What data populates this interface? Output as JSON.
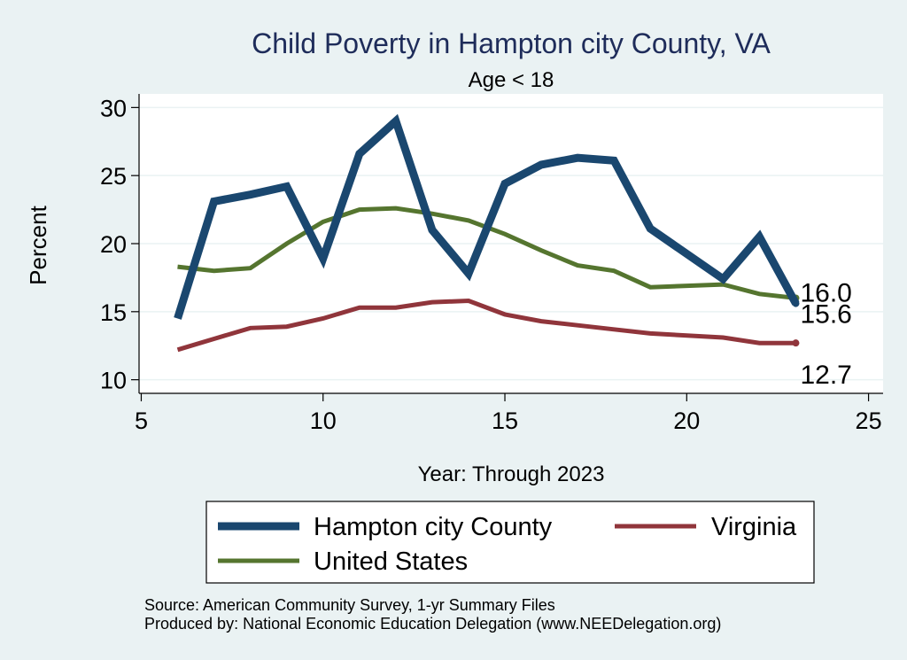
{
  "chart_data": {
    "type": "line",
    "title": "Child Poverty in Hampton city County, VA",
    "subtitle": "Age < 18",
    "xlabel": "Year: Through 2023",
    "ylabel": "Percent",
    "xlim": [
      5,
      25
    ],
    "ylim": [
      10,
      30
    ],
    "xticks": [
      5,
      10,
      15,
      20,
      25
    ],
    "yticks": [
      10,
      15,
      20,
      25,
      30
    ],
    "grid": true,
    "legend_position": "bottom",
    "series": [
      {
        "name": "Hampton city County",
        "color": "#1a476f",
        "x": [
          6,
          7,
          8,
          9,
          10,
          11,
          12,
          13,
          14,
          15,
          16,
          17,
          18,
          19,
          21,
          22,
          23
        ],
        "values": [
          14.5,
          23.1,
          23.6,
          24.2,
          18.9,
          26.6,
          29.0,
          21.0,
          17.8,
          24.4,
          25.8,
          26.3,
          26.1,
          21.1,
          17.4,
          20.5,
          15.6
        ],
        "end_label": "15.6"
      },
      {
        "name": "Virginia",
        "color": "#90353b",
        "x": [
          6,
          7,
          8,
          9,
          10,
          11,
          12,
          13,
          14,
          15,
          16,
          17,
          18,
          19,
          21,
          22,
          23
        ],
        "values": [
          12.2,
          13.0,
          13.8,
          13.9,
          14.5,
          15.3,
          15.3,
          15.7,
          15.8,
          14.8,
          14.3,
          14.0,
          13.7,
          13.4,
          13.1,
          12.7,
          12.7
        ],
        "end_label": "12.7"
      },
      {
        "name": "United States",
        "color": "#55752f",
        "x": [
          6,
          7,
          8,
          9,
          10,
          11,
          12,
          13,
          14,
          15,
          16,
          17,
          18,
          19,
          21,
          22,
          23
        ],
        "values": [
          18.3,
          18.0,
          18.2,
          20.0,
          21.6,
          22.5,
          22.6,
          22.2,
          21.7,
          20.7,
          19.5,
          18.4,
          18.0,
          16.8,
          17.0,
          16.3,
          16.0
        ],
        "end_label": "16.0"
      }
    ],
    "source_note": "Source: American Community Survey, 1-yr Summary Files",
    "producer_note": "Produced by: National Economic Education Delegation (www.NEEDelegation.org)"
  }
}
